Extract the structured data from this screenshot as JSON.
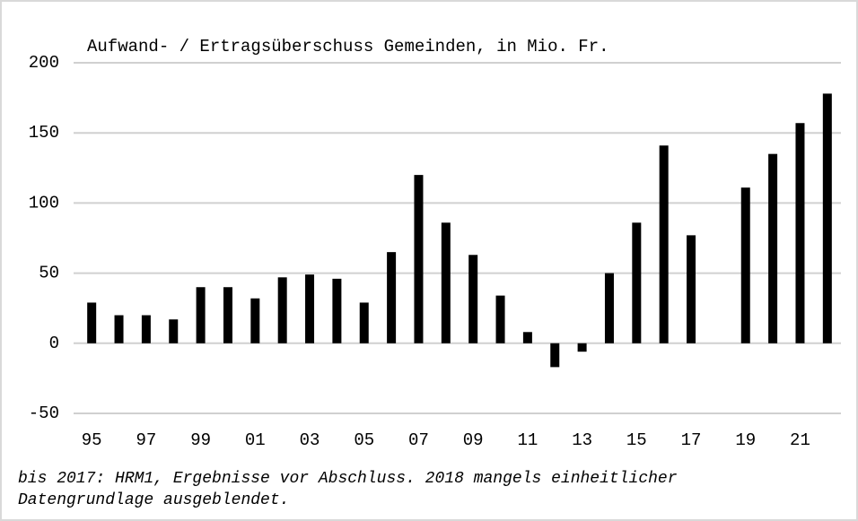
{
  "chart_data": {
    "type": "bar",
    "title": "Aufwand- / Ertragsüberschuss Gemeinden, in Mio. Fr.",
    "categories": [
      "95",
      null,
      "97",
      null,
      "99",
      null,
      "01",
      null,
      "03",
      null,
      "05",
      null,
      "07",
      null,
      "09",
      null,
      "11",
      null,
      "13",
      null,
      "15",
      null,
      "17",
      null,
      "19",
      null,
      "21",
      null
    ],
    "values": [
      29,
      20,
      20,
      17,
      40,
      40,
      32,
      47,
      49,
      46,
      29,
      65,
      120,
      86,
      63,
      34,
      8,
      -17,
      -6,
      50,
      86,
      141,
      77,
      null,
      111,
      135,
      157,
      178
    ],
    "color": "#000000",
    "ylim": [
      -50,
      200
    ],
    "yticks": [
      -50,
      0,
      50,
      100,
      150,
      200
    ],
    "grid": true,
    "footnote": [
      "bis 2017: HRM1, Ergebnisse vor Abschluss. 2018 mangels einheitlicher",
      "Datengrundlage ausgeblendet."
    ]
  }
}
